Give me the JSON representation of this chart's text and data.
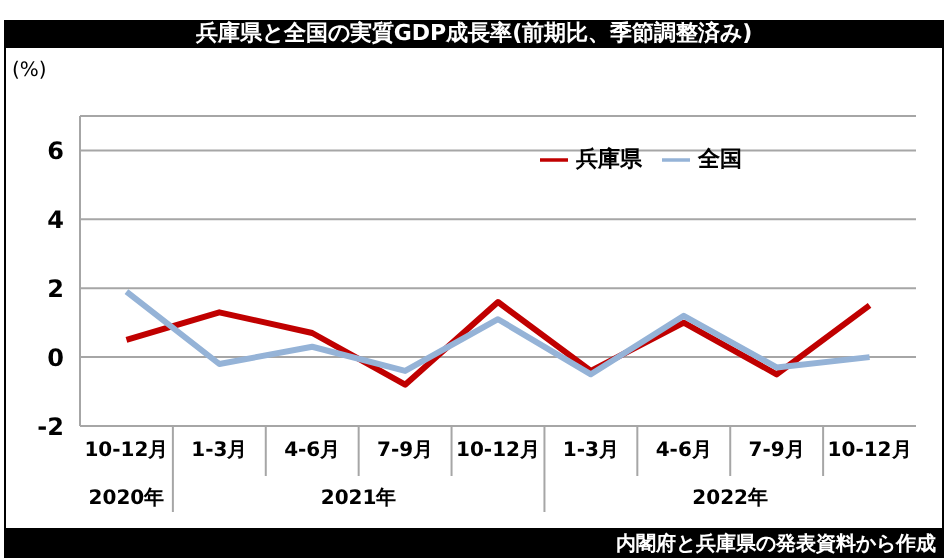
{
  "chart_data": {
    "type": "line",
    "title": "兵庫県と全国の実質GDP成長率(前期比、季節調整済み)",
    "ylabel": "(%)",
    "categories": [
      "10-12月",
      "1-3月",
      "4-6月",
      "7-9月",
      "10-12月",
      "1-3月",
      "4-6月",
      "7-9月",
      "10-12月"
    ],
    "series": [
      {
        "name": "兵庫県",
        "color": "#c00000",
        "values": [
          0.5,
          1.3,
          0.7,
          -0.8,
          1.6,
          -0.4,
          1.0,
          -0.5,
          1.5
        ]
      },
      {
        "name": "全国",
        "color": "#95b3d7",
        "values": [
          1.9,
          -0.2,
          0.3,
          -0.4,
          1.1,
          -0.5,
          1.2,
          -0.3,
          0.0
        ]
      }
    ],
    "ylim": [
      -2,
      7
    ],
    "yticks": [
      -2,
      0,
      2,
      4,
      6
    ],
    "grid": "y",
    "legend": "top right",
    "marker": "none",
    "line_style": "solid",
    "annotations": [
      "2020年",
      "2021年",
      "2022年",
      "内閣府と兵庫県の発表資料から作成"
    ]
  }
}
